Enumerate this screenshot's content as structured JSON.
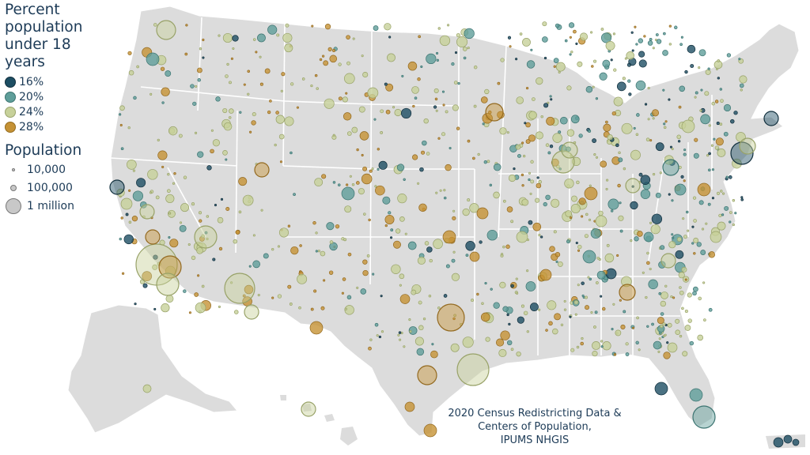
{
  "legend": {
    "pct_title": "Percent\npopulation\nunder 18\nyears",
    "pct_items": [
      {
        "label": "16%",
        "color": "#1d4e63"
      },
      {
        "label": "20%",
        "color": "#5f9e9a"
      },
      {
        "label": "24%",
        "color": "#c7d19a"
      },
      {
        "label": "28%",
        "color": "#c59235"
      }
    ],
    "pop_title": "Population",
    "pop_items": [
      {
        "label": "10,000"
      },
      {
        "label": "100,000"
      },
      {
        "label": "1 million"
      }
    ]
  },
  "source": "2020 Census Redistricting Data &\nCenters of Population,\nIPUMS NHGIS",
  "colors": {
    "land": "#dcdcdc",
    "borders": "#ffffff",
    "u16": "#1d4e63",
    "u20": "#5f9e9a",
    "u24": "#c7d19a",
    "u28": "#c59235"
  }
}
